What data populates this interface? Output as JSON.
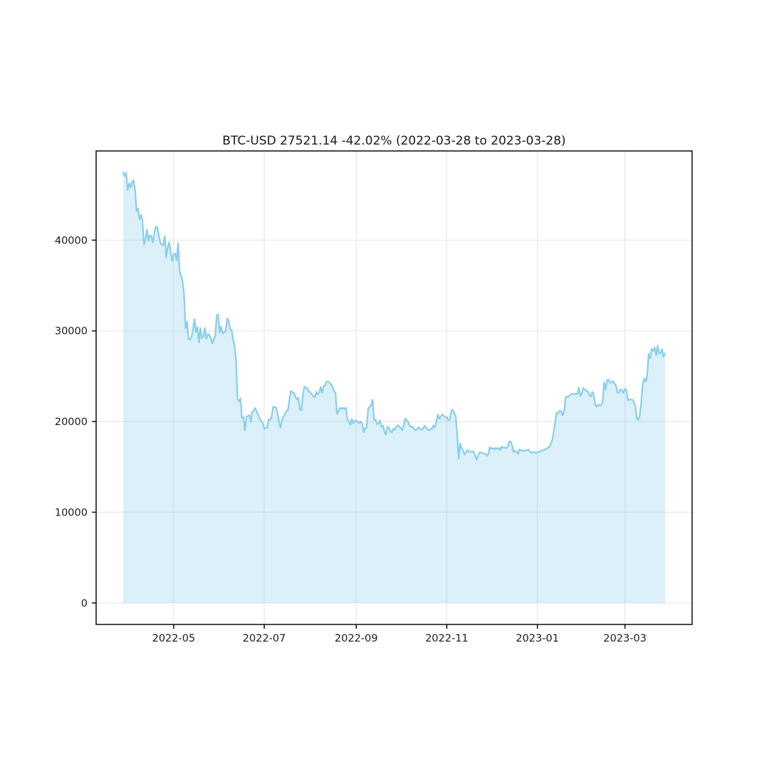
{
  "figure": {
    "background": "#ffffff"
  },
  "chart_data": {
    "type": "area",
    "title": "BTC-USD 27521.14 -42.02% (2022-03-28 to 2023-03-28)",
    "symbol": "BTC-USD",
    "last_price": "27521.14",
    "change_pct": "-42.02%",
    "period_start": "2022-03-28",
    "period_end": "2023-03-28",
    "xlabel": "",
    "ylabel": "",
    "grid": true,
    "legend": "none",
    "line_color": "#87ceeb",
    "fill_color": "#87ceeb",
    "fill_opacity": 0.3,
    "grid_color": "#e7e7e7",
    "spine_color": "#1a1a1a",
    "text_color": "#1a1a1a",
    "xlim_days": [
      -18.25,
      383.25
    ],
    "ylim": [
      -2373,
      49838
    ],
    "x_interval_days": 1,
    "x_ticks": [
      {
        "label": "2022-05",
        "date": "2022-05-01"
      },
      {
        "label": "2022-07",
        "date": "2022-07-01"
      },
      {
        "label": "2022-09",
        "date": "2022-09-01"
      },
      {
        "label": "2022-11",
        "date": "2022-11-01"
      },
      {
        "label": "2023-01",
        "date": "2023-01-01"
      },
      {
        "label": "2023-03",
        "date": "2023-03-01"
      }
    ],
    "y_ticks": [
      {
        "label": "0",
        "value": 0
      },
      {
        "label": "10000",
        "value": 10000
      },
      {
        "label": "20000",
        "value": 20000
      },
      {
        "label": "30000",
        "value": 30000
      },
      {
        "label": "40000",
        "value": 40000
      }
    ],
    "values": [
      47465,
      47078,
      47445,
      45539,
      46283,
      45811,
      46407,
      46622,
      45544,
      43206,
      43505,
      42282,
      42768,
      42158,
      39533,
      40123,
      41160,
      39935,
      40553,
      40424,
      39716,
      40826,
      41502,
      41374,
      40527,
      39740,
      39486,
      39469,
      40458,
      38117,
      39241,
      39773,
      38605,
      37714,
      38469,
      38529,
      37750,
      39698,
      36575,
      36040,
      35502,
      34059,
      30296,
      31022,
      29103,
      29029,
      29283,
      30087,
      31305,
      29862,
      30425,
      28720,
      30314,
      29200,
      29432,
      30323,
      29098,
      29655,
      29562,
      29201,
      28622,
      29027,
      29468,
      31734,
      31792,
      29799,
      30467,
      29705,
      29864,
      29919,
      31373,
      31125,
      30205,
      30111,
      29083,
      28360,
      26763,
      22487,
      22206,
      22572,
      20381,
      20471,
      19017,
      20553,
      20599,
      20710,
      19987,
      21085,
      21231,
      21502,
      21027,
      20735,
      20280,
      20104,
      19785,
      19242,
      19297,
      19315,
      20231,
      20190,
      20548,
      21637,
      21592,
      21592,
      20860,
      19970,
      19323,
      20212,
      20569,
      20836,
      21190,
      21237,
      22485,
      23389,
      23231,
      23164,
      22714,
      22465,
      22609,
      21361,
      21239,
      22930,
      23843,
      23773,
      23644,
      23303,
      23271,
      22978,
      22846,
      22630,
      23290,
      22954,
      23175,
      23810,
      23149,
      23948,
      23957,
      24402,
      24424,
      24319,
      24095,
      23854,
      23342,
      23191,
      20838,
      21140,
      21516,
      21400,
      21529,
      21368,
      21559,
      20241,
      20038,
      19616,
      20298,
      19796,
      20050,
      20127,
      19969,
      19832,
      19987,
      19794,
      18837,
      19290,
      19320,
      21361,
      21649,
      21770,
      22395,
      20173,
      20226,
      19701,
      19772,
      20115,
      19419,
      19544,
      18890,
      18547,
      19413,
      19297,
      18936,
      18803,
      19227,
      19079,
      19432,
      19596,
      19431,
      19312,
      19044,
      19623,
      20336,
      20160,
      19955,
      19546,
      19417,
      19441,
      19132,
      19051,
      19157,
      19382,
      19178,
      19067,
      19262,
      19550,
      19328,
      19123,
      19041,
      19164,
      19204,
      19567,
      19330,
      20080,
      20773,
      20296,
      20593,
      20807,
      20627,
      20495,
      20485,
      20159,
      20209,
      21148,
      21301,
      20926,
      20602,
      18541,
      15881,
      17586,
      17035,
      16799,
      16353,
      16618,
      16900,
      16662,
      16693,
      16697,
      16700,
      16291,
      15787,
      16190,
      16603,
      16603,
      16522,
      16464,
      16444,
      16217,
      16444,
      17168,
      16978,
      17088,
      16908,
      17105,
      16966,
      17089,
      16836,
      17224,
      17128,
      17127,
      17085,
      17209,
      17774,
      17803,
      17360,
      16632,
      16776,
      16717,
      16440,
      16906,
      16817,
      16822,
      16778,
      16838,
      16832,
      16919,
      16706,
      16547,
      16633,
      16607,
      16542,
      16617,
      16672,
      16675,
      16850,
      16831,
      16950,
      16943,
      17128,
      17178,
      17440,
      17943,
      18846,
      19909,
      20976,
      20880,
      21185,
      21134,
      20677,
      21075,
      22668,
      22783,
      22707,
      22917,
      23078,
      23032,
      23009,
      23080,
      23027,
      23744,
      22840,
      23125,
      23723,
      23471,
      23431,
      23327,
      22955,
      22760,
      23264,
      22939,
      21819,
      21651,
      21862,
      21783,
      21774,
      22199,
      24324,
      23517,
      24565,
      24641,
      24282,
      24327,
      24452,
      24182,
      23940,
      23187,
      23161,
      23556,
      23492,
      23147,
      23646,
      23475,
      22354,
      22435,
      22410,
      22410,
      22198,
      21710,
      20363,
      20187,
      20632,
      22163,
      24197,
      24750,
      24375,
      25052,
      27454,
      26965,
      28038,
      27767,
      28184,
      27307,
      28324,
      27493,
      27580,
      27972,
      27139,
      27521
    ]
  }
}
